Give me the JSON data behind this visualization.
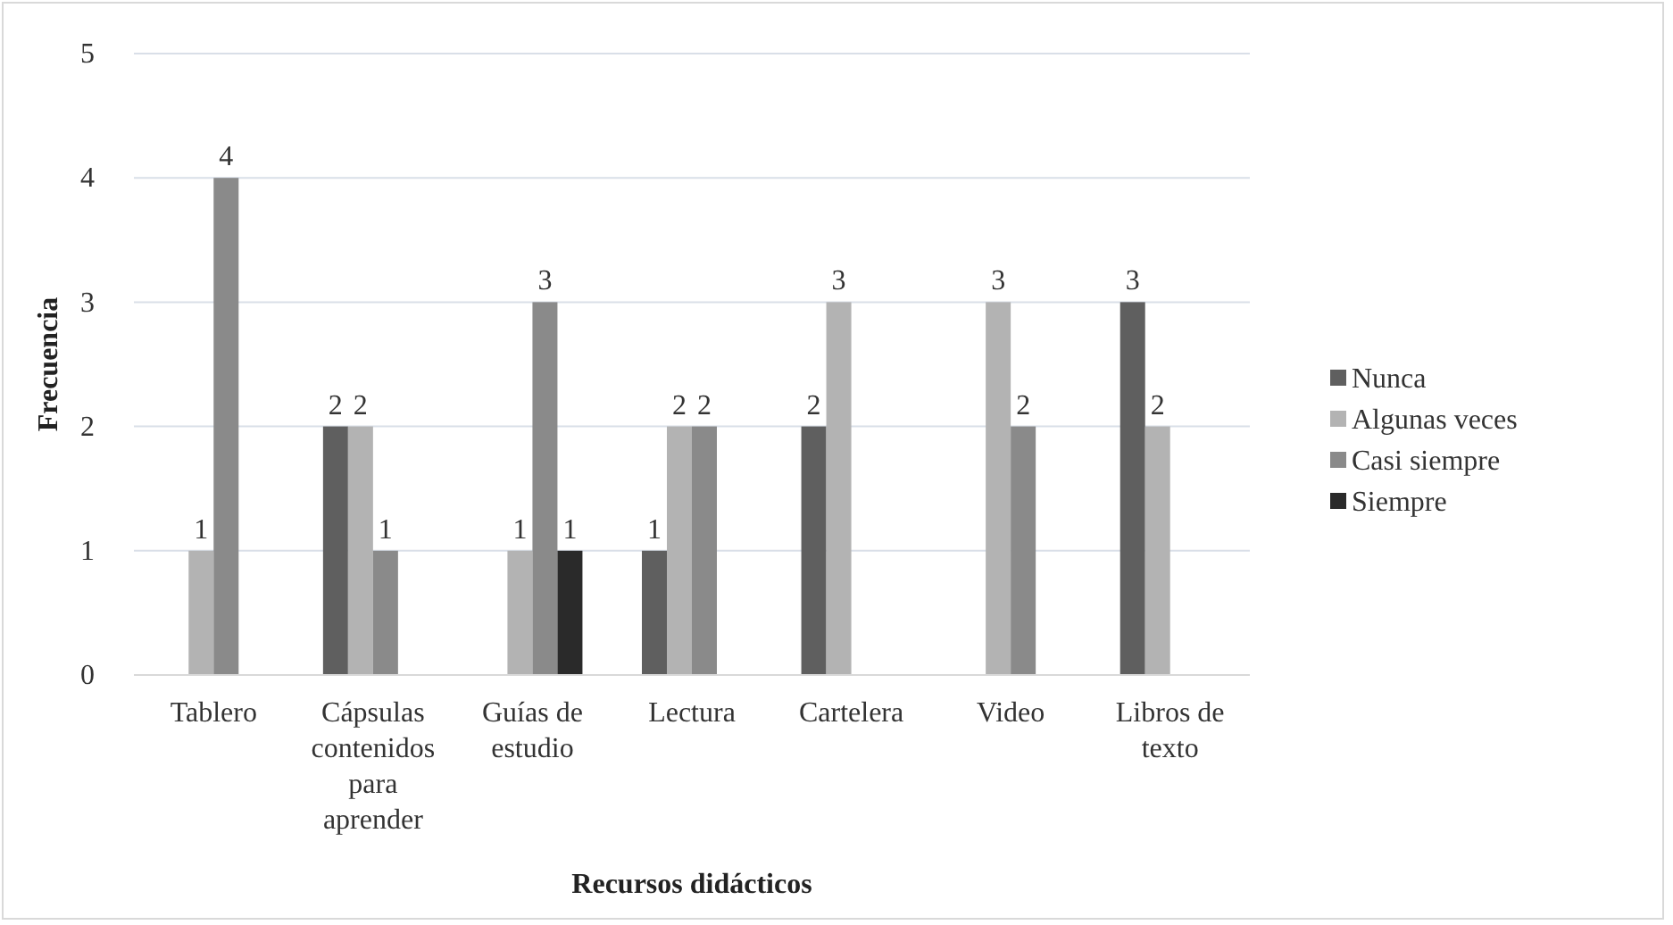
{
  "chart_data": {
    "type": "bar",
    "categories": [
      "Tablero",
      "Cápsulas contenidos para aprender",
      "Guías de estudio",
      "Lectura",
      "Cartelera",
      "Video",
      "Libros de texto"
    ],
    "series": [
      {
        "name": "Nunca",
        "color": "#5f5f5f",
        "values": [
          0,
          2,
          0,
          1,
          2,
          0,
          3
        ],
        "value_labels": [
          null,
          "2",
          null,
          "1",
          "2",
          null,
          "3"
        ]
      },
      {
        "name": "Algunas veces",
        "color": "#b3b3b3",
        "values": [
          1,
          2,
          1,
          2,
          3,
          3,
          2
        ],
        "value_labels": [
          "1",
          "2",
          "1",
          "2",
          "3",
          "3",
          "2"
        ]
      },
      {
        "name": "Casi siempre",
        "color": "#8a8a8a",
        "values": [
          4,
          1,
          3,
          2,
          0,
          2,
          0
        ],
        "value_labels": [
          "4",
          "1",
          "3",
          "2",
          null,
          "2",
          null
        ]
      },
      {
        "name": "Siempre",
        "color": "#2a2a2a",
        "values": [
          0,
          0,
          1,
          0,
          0,
          0,
          0
        ],
        "value_labels": [
          null,
          null,
          "1",
          null,
          null,
          null,
          null
        ]
      }
    ],
    "xlabel": "Recursos didácticos",
    "ylabel": "Frecuencia",
    "ylim": [
      0,
      5
    ],
    "yticks": [
      0,
      1,
      2,
      3,
      4,
      5
    ],
    "grid": "y",
    "legend": "right"
  }
}
